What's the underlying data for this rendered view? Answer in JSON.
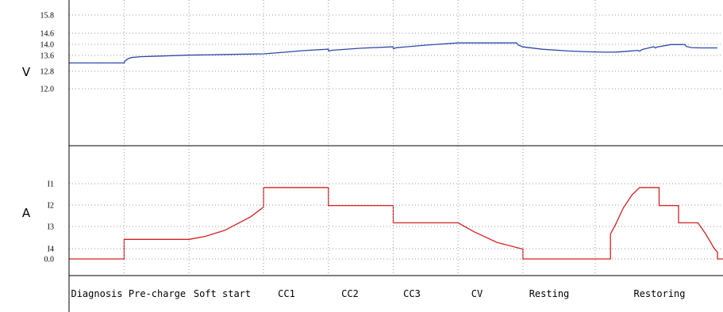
{
  "chart_data": [
    {
      "type": "line",
      "panel": "voltage",
      "ylabel": "V",
      "y_ticks": [
        "15.8",
        "14.6",
        "14.0",
        "13.6",
        "12.8",
        "12.0"
      ],
      "grid": true,
      "categories": [
        "Diagnosis",
        "Pre-charge",
        "Soft start",
        "CC1",
        "CC2",
        "CC3",
        "CV",
        "Resting",
        "Restoring"
      ],
      "series": [
        {
          "color": "#2e48a8",
          "points": [
            [
              0,
              11.5
            ],
            [
              0.85,
              11.5
            ],
            [
              0.86,
              11.65
            ],
            [
              0.9,
              11.85
            ],
            [
              0.96,
              11.98
            ],
            [
              1.1,
              12.06
            ],
            [
              1.4,
              12.12
            ],
            [
              1.8,
              12.2
            ],
            [
              2.5,
              12.27
            ],
            [
              3.0,
              12.32
            ],
            [
              3.3,
              12.45
            ],
            [
              3.6,
              12.6
            ],
            [
              4.0,
              12.74
            ],
            [
              4.0,
              12.56
            ],
            [
              4.05,
              12.64
            ],
            [
              4.5,
              12.82
            ],
            [
              5.0,
              12.95
            ],
            [
              5.0,
              12.78
            ],
            [
              5.05,
              12.87
            ],
            [
              5.5,
              13.1
            ],
            [
              6.0,
              13.3
            ],
            [
              6.9,
              13.3
            ],
            [
              6.93,
              13.1
            ],
            [
              7.0,
              12.94
            ],
            [
              7.3,
              12.73
            ],
            [
              7.7,
              12.57
            ],
            [
              8.0,
              12.5
            ],
            [
              8.3,
              12.47
            ],
            [
              8.45,
              12.48
            ],
            [
              8.62,
              12.55
            ],
            [
              8.77,
              12.63
            ],
            [
              8.8,
              12.56
            ],
            [
              8.84,
              12.71
            ],
            [
              9.02,
              12.96
            ],
            [
              9.04,
              12.84
            ],
            [
              9.07,
              12.93
            ],
            [
              9.28,
              13.15
            ],
            [
              9.5,
              13.15
            ],
            [
              9.52,
              12.98
            ],
            [
              9.6,
              12.88
            ],
            [
              9.75,
              12.85
            ],
            [
              10.0,
              12.85
            ]
          ]
        }
      ]
    },
    {
      "type": "line",
      "panel": "current",
      "ylabel": "A",
      "y_ticks": [
        "I1",
        "I2",
        "I3",
        "I4",
        "0.0"
      ],
      "grid": true,
      "categories": [
        "Diagnosis",
        "Pre-charge",
        "Soft start",
        "CC1",
        "CC2",
        "CC3",
        "CV",
        "Resting",
        "Restoring"
      ],
      "series": [
        {
          "color": "#d42020",
          "points": [
            [
              0,
              0.0
            ],
            [
              0.85,
              0.0
            ],
            [
              0.85,
              0.26
            ],
            [
              1.85,
              0.26
            ],
            [
              2.1,
              0.3
            ],
            [
              2.4,
              0.38
            ],
            [
              2.8,
              0.56
            ],
            [
              3.0,
              0.69
            ],
            [
              3.0,
              0.95
            ],
            [
              4.0,
              0.95
            ],
            [
              4.0,
              0.71
            ],
            [
              5.0,
              0.71
            ],
            [
              5.0,
              0.48
            ],
            [
              6.0,
              0.48
            ],
            [
              6.25,
              0.36
            ],
            [
              6.6,
              0.22
            ],
            [
              7.0,
              0.13
            ],
            [
              7.0,
              0.0
            ],
            [
              8.35,
              0.0
            ],
            [
              8.35,
              0.33
            ],
            [
              8.43,
              0.46
            ],
            [
              8.55,
              0.68
            ],
            [
              8.68,
              0.85
            ],
            [
              8.8,
              0.95
            ],
            [
              9.1,
              0.95
            ],
            [
              9.1,
              0.71
            ],
            [
              9.4,
              0.71
            ],
            [
              9.4,
              0.48
            ],
            [
              9.7,
              0.48
            ],
            [
              9.82,
              0.33
            ],
            [
              9.95,
              0.14
            ],
            [
              10.0,
              0.09
            ],
            [
              10.0,
              0.0
            ],
            [
              10.3,
              0.0
            ]
          ]
        }
      ]
    }
  ]
}
